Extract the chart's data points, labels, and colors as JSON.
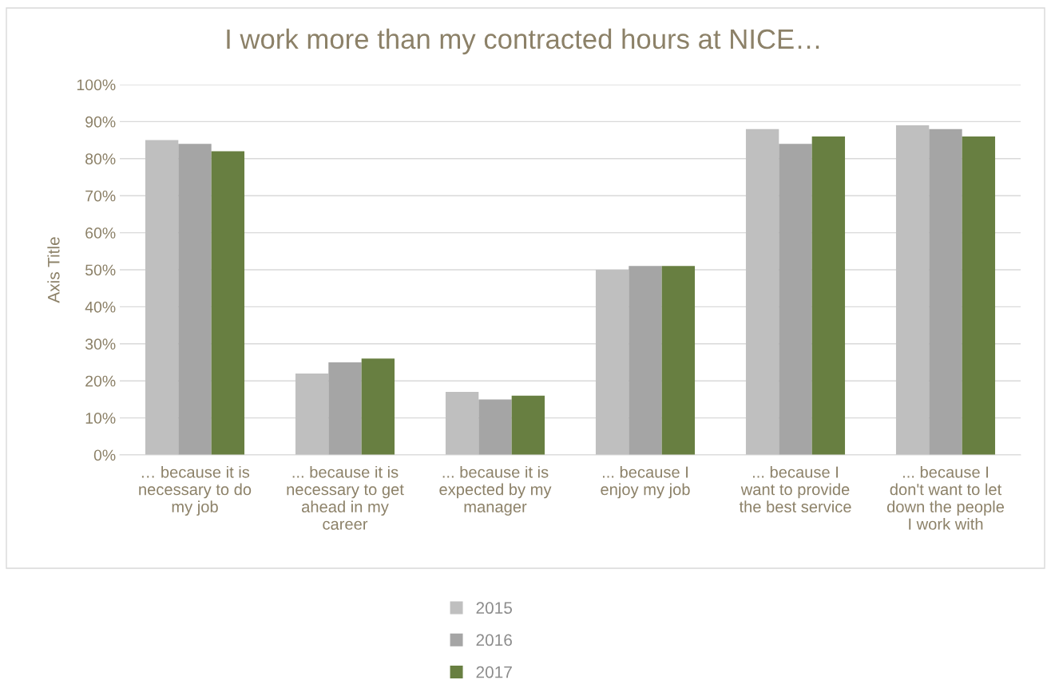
{
  "chart_data": {
    "type": "bar",
    "title": "I work more than my contracted hours at NICE…",
    "ylabel": "Axis Title",
    "categories": [
      "… because it is\nnecessary to do\nmy job",
      "... because it is\nnecessary to get\nahead in my\ncareer",
      "... because it is\nexpected by my\nmanager",
      "... because I\nenjoy my job",
      "... because I\nwant to provide\nthe best service",
      "... because I\ndon't want to let\ndown the people\nI work with"
    ],
    "series": [
      {
        "name": "2015",
        "color": "#bfbfbf",
        "values": [
          85,
          22,
          17,
          50,
          88,
          89
        ]
      },
      {
        "name": "2016",
        "color": "#a5a5a5",
        "values": [
          84,
          25,
          15,
          51,
          84,
          88
        ]
      },
      {
        "name": "2017",
        "color": "#687f41",
        "values": [
          82,
          26,
          16,
          51,
          86,
          86
        ]
      }
    ],
    "ylim": [
      0,
      100
    ],
    "yticks": [
      {
        "value": 0,
        "label": "0%"
      },
      {
        "value": 10,
        "label": "10%"
      },
      {
        "value": 20,
        "label": "20%"
      },
      {
        "value": 30,
        "label": "30%"
      },
      {
        "value": 40,
        "label": "40%"
      },
      {
        "value": 50,
        "label": "50%"
      },
      {
        "value": 60,
        "label": "60%"
      },
      {
        "value": 70,
        "label": "70%"
      },
      {
        "value": 80,
        "label": "80%"
      },
      {
        "value": 90,
        "label": "90%"
      },
      {
        "value": 100,
        "label": "100%"
      }
    ],
    "grid": "y",
    "legend": "bottom"
  }
}
